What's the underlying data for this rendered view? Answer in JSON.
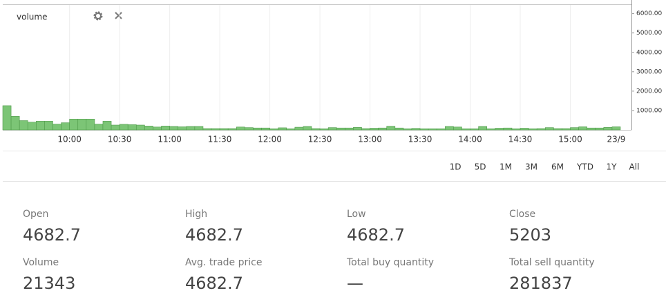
{
  "chart_data": {
    "type": "bar",
    "legend": "volume",
    "categories": [
      null,
      null,
      null,
      null,
      null,
      null,
      null,
      null,
      "10:00",
      null,
      null,
      null,
      null,
      null,
      "10:30",
      null,
      null,
      null,
      null,
      null,
      "11:00",
      null,
      null,
      null,
      null,
      null,
      "11:30",
      null,
      null,
      null,
      null,
      null,
      "12:00",
      null,
      null,
      null,
      null,
      null,
      "12:30",
      null,
      null,
      null,
      null,
      null,
      "13:00",
      null,
      null,
      null,
      null,
      null,
      "13:30",
      null,
      null,
      null,
      null,
      null,
      "14:00",
      null,
      null,
      null,
      null,
      null,
      "14:30",
      null,
      null,
      null,
      null,
      null,
      "15:00",
      null,
      null,
      null,
      null,
      "23/9"
    ],
    "values": [
      1250,
      700,
      480,
      400,
      450,
      450,
      300,
      370,
      560,
      560,
      560,
      300,
      450,
      250,
      290,
      270,
      250,
      200,
      150,
      200,
      180,
      160,
      180,
      180,
      70,
      70,
      70,
      70,
      150,
      120,
      100,
      100,
      60,
      110,
      60,
      140,
      180,
      70,
      60,
      120,
      100,
      100,
      130,
      70,
      90,
      100,
      190,
      100,
      60,
      80,
      60,
      60,
      60,
      180,
      150,
      60,
      60,
      180,
      60,
      90,
      100,
      60,
      90,
      60,
      70,
      120,
      70,
      70,
      120,
      160,
      100,
      100,
      130,
      160
    ],
    "color": "#7cc576",
    "ylim": [
      0,
      6450
    ],
    "yticks": [
      {
        "value": 1000,
        "label": "1000.00"
      },
      {
        "value": 2000,
        "label": "2000.00"
      },
      {
        "value": 3000,
        "label": "3000.00"
      },
      {
        "value": 4000,
        "label": "4000.00"
      },
      {
        "value": 5000,
        "label": "5000.00"
      },
      {
        "value": 6000,
        "label": "6000.00"
      }
    ],
    "x_grid": true
  },
  "ranges": [
    "1D",
    "5D",
    "1M",
    "3M",
    "6M",
    "YTD",
    "1Y",
    "All"
  ],
  "stats": [
    {
      "label": "Open",
      "value": "4682.7"
    },
    {
      "label": "High",
      "value": "4682.7"
    },
    {
      "label": "Low",
      "value": "4682.7"
    },
    {
      "label": "Close",
      "value": "5203"
    },
    {
      "label": "Volume",
      "value": "21343"
    },
    {
      "label": "Avg. trade price",
      "value": "4682.7"
    },
    {
      "label": "Total buy quantity",
      "value": "—"
    },
    {
      "label": "Total sell quantity",
      "value": "281837"
    }
  ]
}
